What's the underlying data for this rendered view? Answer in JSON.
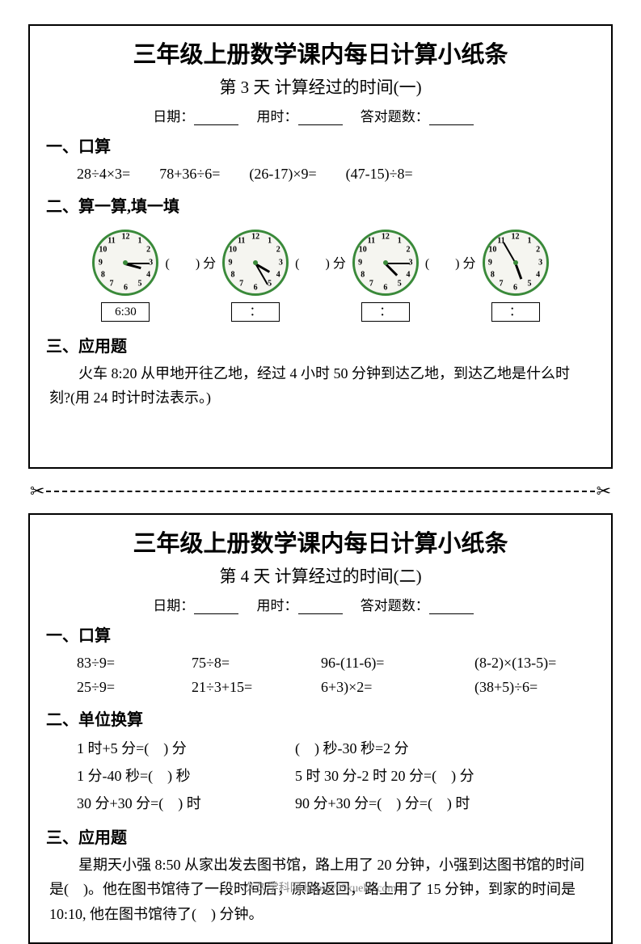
{
  "footer": "久久学科网 https://99xueke.com",
  "clock_style": {
    "border_color": "#3a8a3a",
    "face_color": "#f5f5f0",
    "border_width": 3,
    "num_fontsize": 10
  },
  "ws1": {
    "title": "三年级上册数学课内每日计算小纸条",
    "subtitle": "第 3 天 计算经过的时间(一)",
    "info": {
      "date_label": "日期：",
      "time_label": "用时：",
      "correct_label": "答对题数："
    },
    "s1": {
      "head": "一、口算",
      "problems": [
        "28÷4×3=",
        "78+36÷6=",
        "(26-17)×9=",
        "(47-15)÷8="
      ]
    },
    "s2": {
      "head": "二、算一算,填一填",
      "gap_label": "(　　) 分",
      "clocks": [
        {
          "hour_deg": 105,
          "min_deg": 90,
          "box": "6:30"
        },
        {
          "hour_deg": 120,
          "min_deg": 150,
          "box": "："
        },
        {
          "hour_deg": 135,
          "min_deg": 90,
          "box": "："
        },
        {
          "hour_deg": 160,
          "min_deg": 330,
          "box": "："
        }
      ]
    },
    "s3": {
      "head": "三、应用题",
      "text": "火车 8:20 从甲地开往乙地，经过 4 小时 50 分钟到达乙地，到达乙地是什么时　刻?(用 24 时计时法表示。)"
    }
  },
  "ws2": {
    "title": "三年级上册数学课内每日计算小纸条",
    "subtitle": "第 4 天 计算经过的时间(二)",
    "info": {
      "date_label": "日期：",
      "time_label": "用时：",
      "correct_label": "答对题数："
    },
    "s1": {
      "head": "一、口算",
      "row1": [
        "83÷9=",
        "75÷8=",
        "96-(11-6)=",
        "(8-2)×(13-5)="
      ],
      "row2": [
        "25÷9=",
        "21÷3+15=",
        "6+3)×2=",
        "(38+5)÷6="
      ]
    },
    "s2": {
      "head": "二、单位换算",
      "rows": [
        {
          "c1": "1 时+5 分=(　) 分",
          "c2": "(　) 秒-30 秒=2 分"
        },
        {
          "c1": "1 分-40 秒=(　) 秒",
          "c2": "5 时 30 分-2 时 20 分=(　) 分"
        },
        {
          "c1": "30 分+30 分=(　) 时",
          "c2": "90 分+30 分=(　) 分=(　) 时"
        }
      ]
    },
    "s3": {
      "head": "三、应用题",
      "text": "星期天小强 8:50 从家出发去图书馆，路上用了 20 分钟，小强到达图书馆的时间是(　)。他在图书馆待了一段时间后，原路返回，路上用了 15 分钟，到家的时间是 10:10, 他在图书馆待了(　) 分钟。"
    }
  }
}
